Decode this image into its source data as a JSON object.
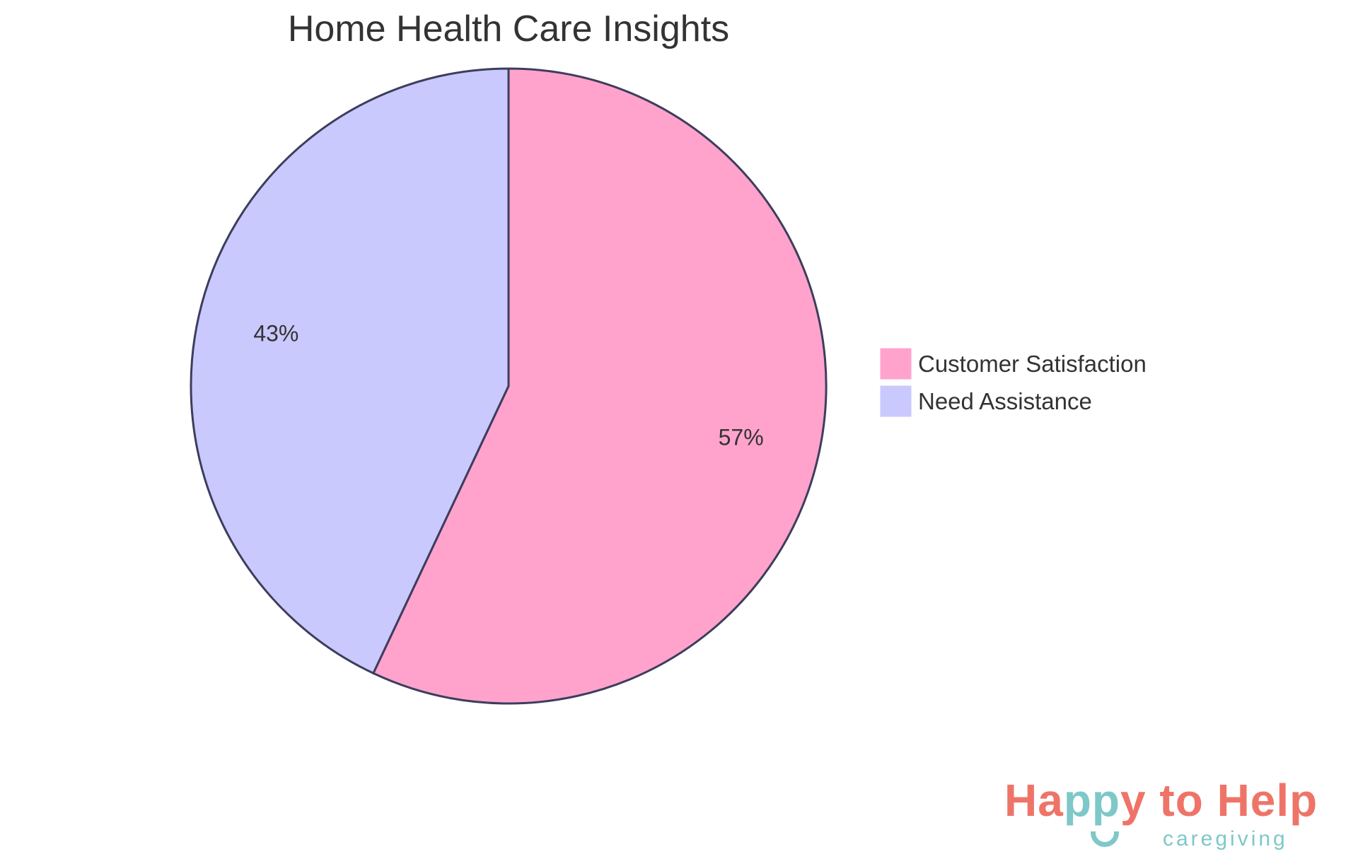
{
  "chart_data": {
    "type": "pie",
    "title": "Home Health Care Insights",
    "slices": [
      {
        "label": "Customer Satisfaction",
        "value": 57,
        "display": "57%",
        "color": "#ffa3cd"
      },
      {
        "label": "Need Assistance",
        "value": 43,
        "display": "43%",
        "color": "#c9c9fe"
      }
    ],
    "start_angle": "12 o'clock",
    "direction": "clockwise",
    "legend_position": "right",
    "stroke_color": "#3d3d5c"
  },
  "logo": {
    "line1_a": "Ha",
    "line1_b": "pp",
    "line1_c": "y to Help",
    "line2": "caregiving"
  }
}
